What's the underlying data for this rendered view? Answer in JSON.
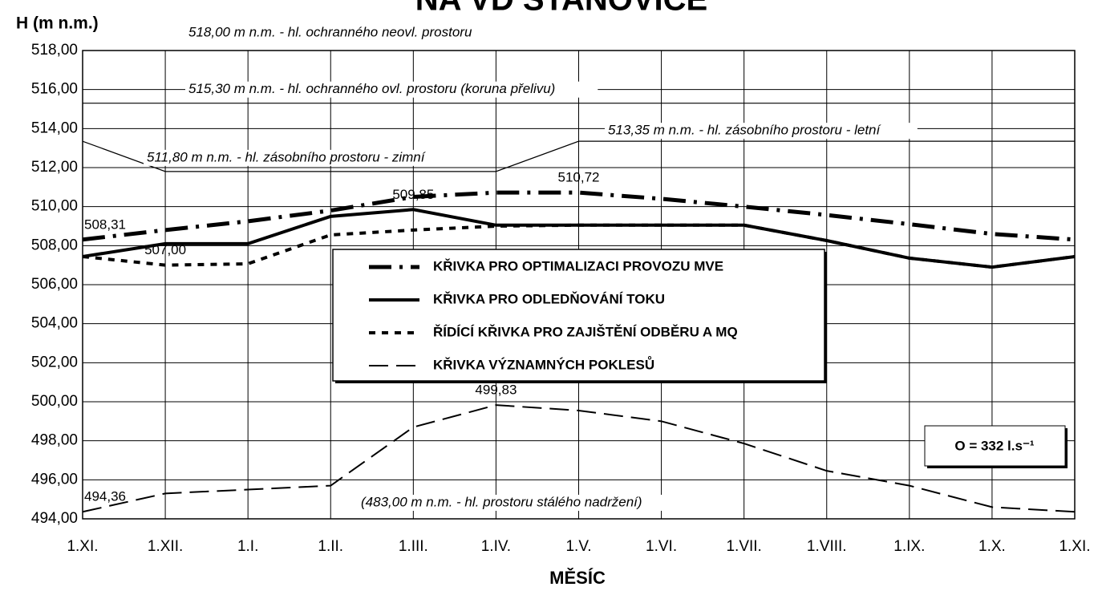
{
  "chart_data": {
    "type": "line",
    "title": "NA VD STANOVICE",
    "y_label": "H (m n.m.)",
    "x_label": "MĚSÍC",
    "categories": [
      "1.XI.",
      "1.XII.",
      "1.I.",
      "1.II.",
      "1.III.",
      "1.IV.",
      "1.V.",
      "1.VI.",
      "1.VII.",
      "1.VIII.",
      "1.IX.",
      "1.X.",
      "1.XI."
    ],
    "ylim": [
      494,
      518
    ],
    "yticks": [
      {
        "value": 494,
        "label": "494,00"
      },
      {
        "value": 496,
        "label": "496,00"
      },
      {
        "value": 498,
        "label": "498,00"
      },
      {
        "value": 500,
        "label": "500,00"
      },
      {
        "value": 502,
        "label": "502,00"
      },
      {
        "value": 504,
        "label": "504,00"
      },
      {
        "value": 506,
        "label": "506,00"
      },
      {
        "value": 508,
        "label": "508,00"
      },
      {
        "value": 510,
        "label": "510,00"
      },
      {
        "value": 512,
        "label": "512,00"
      },
      {
        "value": 514,
        "label": "514,00"
      },
      {
        "value": 516,
        "label": "516,00"
      },
      {
        "value": 518,
        "label": "518,00"
      }
    ],
    "grid": true,
    "series": [
      {
        "name": "KŘIVKA PRO OPTIMALIZACI PROVOZU MVE",
        "color": "#000000",
        "dash": "28,10,4,10",
        "width": 5,
        "values": [
          508.31,
          508.8,
          509.25,
          509.8,
          510.5,
          510.72,
          510.72,
          510.4,
          510.0,
          509.57,
          509.1,
          508.6,
          508.31
        ],
        "value_labels": [
          "508,31",
          null,
          null,
          null,
          null,
          null,
          "510,72",
          null,
          null,
          null,
          null,
          null,
          null
        ]
      },
      {
        "name": "KŘIVKA PRO ODLEDŇOVÁNÍ TOKU",
        "color": "#000000",
        "dash": "none",
        "width": 4,
        "values": [
          507.44,
          508.1,
          508.1,
          509.5,
          509.85,
          509.05,
          509.05,
          509.05,
          509.05,
          508.26,
          507.36,
          506.9,
          507.44
        ],
        "value_labels": [
          null,
          null,
          null,
          null,
          "509,85",
          null,
          null,
          null,
          null,
          null,
          null,
          null,
          null
        ]
      },
      {
        "name": "ŘÍDÍCÍ KŘIVKA PRO ZAJIŠTĚNÍ ODBĚRU A MQ",
        "color": "#000000",
        "dash": "8,8",
        "width": 4,
        "values": [
          507.44,
          507.0,
          507.07,
          508.55,
          508.8,
          509.0,
          509.05,
          509.05,
          509.05,
          508.26,
          507.36,
          506.9,
          507.44
        ],
        "value_labels": [
          null,
          "507,00",
          null,
          null,
          null,
          null,
          null,
          null,
          null,
          null,
          null,
          null,
          null
        ]
      },
      {
        "name": "KŘIVKA VÝZNAMNÝCH POKLESŮ",
        "color": "#000000",
        "dash": "24,10",
        "width": 2,
        "values": [
          494.36,
          495.3,
          495.5,
          495.7,
          498.7,
          499.83,
          499.55,
          499.0,
          497.86,
          496.46,
          495.7,
          494.6,
          494.36
        ],
        "value_labels": [
          "494,36",
          null,
          null,
          null,
          null,
          "499,83",
          null,
          null,
          null,
          null,
          null,
          null,
          null
        ]
      }
    ],
    "storage_curve": [
      513.35,
      511.8,
      511.8,
      511.8,
      511.8,
      511.8,
      513.35,
      513.35,
      513.35,
      513.35,
      513.35,
      513.35,
      513.35
    ],
    "reference_lines": [
      {
        "value": 515.3
      }
    ],
    "annotations": [
      {
        "text": "518,00 m n.m. - hl. ochranného neovl. prostoru",
        "value": 518
      },
      {
        "text": "515,30 m n.m. - hl. ochranného ovl. prostoru (koruna přelivu)",
        "value": 515.3
      },
      {
        "text": "513,35 m n.m. - hl. zásobního prostoru - letní",
        "value": 513.35
      },
      {
        "text": "511,80 m n.m. - hl. zásobního prostoru - zimní",
        "value": 511.8
      },
      {
        "text": "(483,00 m n.m. - hl. prostoru stálého nadržení)"
      }
    ],
    "info_box": "O = 332 l.s⁻¹"
  }
}
